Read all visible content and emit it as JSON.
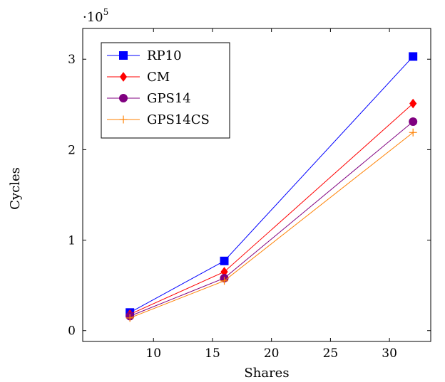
{
  "chart_data": {
    "type": "line",
    "title": "",
    "xlabel": "Shares",
    "ylabel": "Cycles",
    "y_scale_note": "·10",
    "y_scale_exp": "5",
    "xlim": [
      4,
      33.5
    ],
    "ylim": [
      -0.12,
      3.34
    ],
    "x_ticks": [
      10,
      15,
      20,
      25,
      30
    ],
    "y_ticks": [
      0,
      1,
      2,
      3
    ],
    "grid": false,
    "legend_position": "top-left",
    "x": [
      8,
      16,
      32
    ],
    "series": [
      {
        "name": "RP10",
        "color": "#0000ff",
        "marker": "square",
        "values": [
          0.2,
          0.77,
          3.03
        ]
      },
      {
        "name": "CM",
        "color": "#ff0000",
        "marker": "diamond",
        "values": [
          0.18,
          0.65,
          2.51
        ]
      },
      {
        "name": "GPS14",
        "color": "#800080",
        "marker": "circle",
        "values": [
          0.16,
          0.58,
          2.31
        ]
      },
      {
        "name": "GPS14CS",
        "color": "#ff8000",
        "marker": "plus",
        "values": [
          0.14,
          0.55,
          2.19
        ]
      }
    ]
  }
}
